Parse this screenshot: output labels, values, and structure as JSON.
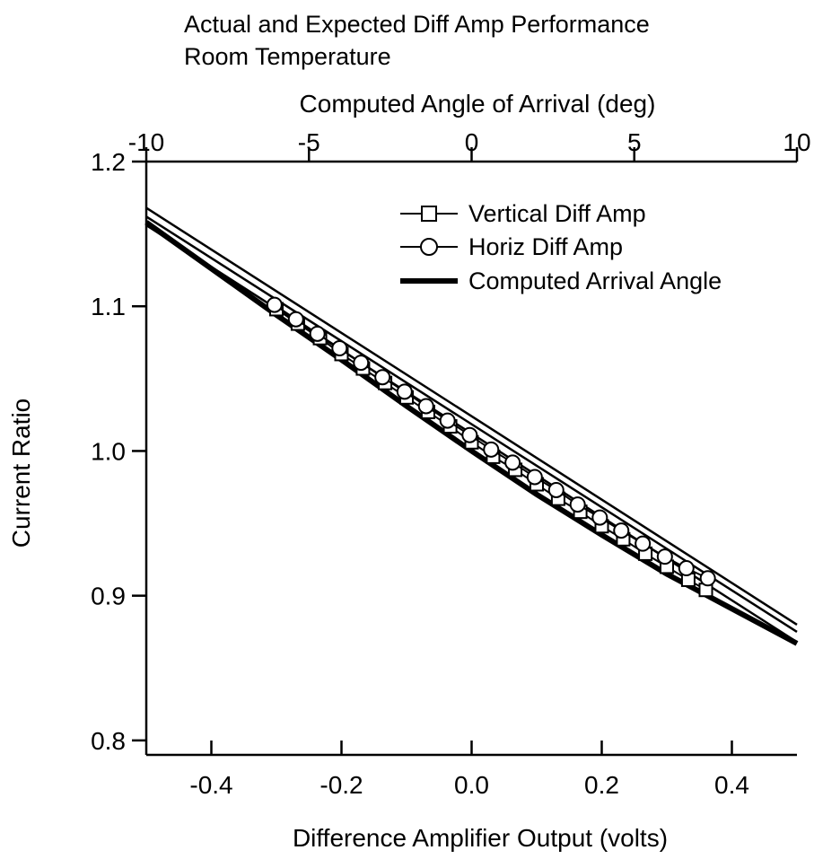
{
  "chart_data": {
    "type": "line",
    "title": "Actual and Expected Diff Amp Performance",
    "subtitle": "Room Temperature",
    "xlabel": "Difference Amplifier Output (volts)",
    "ylabel": "Current Ratio",
    "x2label": "Computed Angle of Arrival (deg)",
    "xlim": [
      -0.5,
      0.5
    ],
    "ylim": [
      0.79,
      1.2
    ],
    "x2lim": [
      -10,
      10
    ],
    "xticks": [
      -0.4,
      -0.2,
      0.0,
      0.2,
      0.4
    ],
    "xtick_labels": [
      "-0.4",
      "-0.2",
      "0.0",
      "0.2",
      "0.4"
    ],
    "yticks": [
      0.8,
      0.9,
      1.0,
      1.1,
      1.2
    ],
    "ytick_labels": [
      "0.8",
      "0.9",
      "1.0",
      "1.1",
      "1.2"
    ],
    "x2ticks": [
      -10,
      -5,
      0,
      5,
      10
    ],
    "x2tick_labels": [
      "-10",
      "-5",
      "0",
      "5",
      "10"
    ],
    "grid": false,
    "legend_position": "top-right",
    "series": [
      {
        "name": "Vertical Diff Amp",
        "marker": "square",
        "x": [
          -0.3,
          -0.267,
          -0.233,
          -0.2,
          -0.167,
          -0.133,
          -0.1,
          -0.067,
          -0.033,
          0.0,
          0.033,
          0.067,
          0.1,
          0.133,
          0.167,
          0.2,
          0.233,
          0.267,
          0.3,
          0.333,
          0.36
        ],
        "y": [
          1.098,
          1.088,
          1.078,
          1.067,
          1.057,
          1.047,
          1.037,
          1.027,
          1.017,
          1.006,
          0.996,
          0.987,
          0.977,
          0.967,
          0.958,
          0.948,
          0.939,
          0.929,
          0.92,
          0.911,
          0.904
        ]
      },
      {
        "name": "Horiz Diff Amp",
        "marker": "circle",
        "x": [
          -0.303,
          -0.27,
          -0.237,
          -0.203,
          -0.17,
          -0.137,
          -0.103,
          -0.07,
          -0.037,
          -0.003,
          0.03,
          0.063,
          0.097,
          0.13,
          0.163,
          0.197,
          0.23,
          0.263,
          0.297,
          0.33,
          0.363
        ],
        "y": [
          1.101,
          1.091,
          1.081,
          1.071,
          1.061,
          1.051,
          1.041,
          1.031,
          1.021,
          1.011,
          1.001,
          0.992,
          0.982,
          0.973,
          0.963,
          0.954,
          0.945,
          0.936,
          0.927,
          0.919,
          0.912
        ]
      },
      {
        "name": "Computed Arrival Angle",
        "marker": "none",
        "x": [
          -0.5,
          -0.4,
          -0.3,
          -0.2,
          -0.1,
          0.0,
          0.1,
          0.2,
          0.3,
          0.4,
          0.5
        ],
        "y": [
          1.158,
          1.126,
          1.094,
          1.063,
          1.031,
          1.0,
          0.97,
          0.942,
          0.915,
          0.891,
          0.867
        ]
      }
    ],
    "fit_lines": [
      {
        "x": [
          -0.5,
          0.5
        ],
        "y": [
          1.168,
          0.88
        ]
      },
      {
        "x": [
          -0.5,
          0.5
        ],
        "y": [
          1.162,
          0.875
        ]
      },
      {
        "x": [
          -0.5,
          0.5
        ],
        "y": [
          1.156,
          0.868
        ]
      }
    ]
  }
}
